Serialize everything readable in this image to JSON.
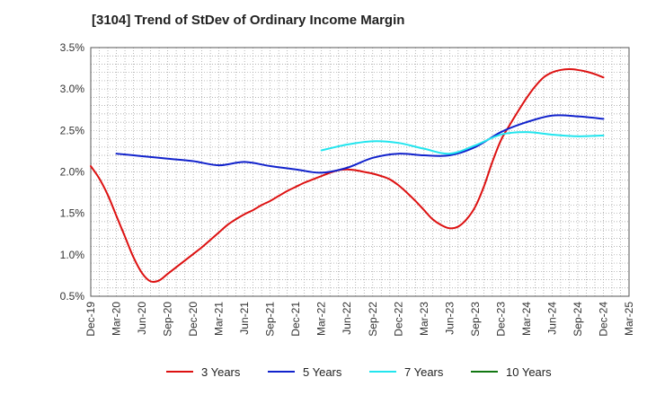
{
  "chart_data": {
    "type": "line",
    "title": "[3104]  Trend of StDev of Ordinary Income Margin",
    "xlabel": "",
    "ylabel": "",
    "x_tick_labels": [
      "Dec-19",
      "Mar-20",
      "Jun-20",
      "Sep-20",
      "Dec-20",
      "Mar-21",
      "Jun-21",
      "Sep-21",
      "Dec-21",
      "Mar-22",
      "Jun-22",
      "Sep-22",
      "Dec-22",
      "Mar-23",
      "Jun-23",
      "Sep-23",
      "Dec-23",
      "Mar-24",
      "Jun-24",
      "Sep-24",
      "Dec-24",
      "Mar-25"
    ],
    "y_tick_labels": [
      "0.5%",
      "1.0%",
      "1.5%",
      "2.0%",
      "2.5%",
      "3.0%",
      "3.5%"
    ],
    "ylim": [
      0.5,
      3.5
    ],
    "y_ticks": [
      0.5,
      1.0,
      1.5,
      2.0,
      2.5,
      3.0,
      3.5
    ],
    "grid": true,
    "legend_position": "bottom",
    "series": [
      {
        "name": "3 Years",
        "color": "#dd1111",
        "x": [
          "Dec-19",
          "Jan-20",
          "Feb-20",
          "Mar-20",
          "Apr-20",
          "May-20",
          "Jun-20",
          "Jul-20",
          "Aug-20",
          "Sep-20",
          "Oct-20",
          "Nov-20",
          "Dec-20",
          "Jan-21",
          "Feb-21",
          "Mar-21",
          "Apr-21",
          "May-21",
          "Jun-21",
          "Jul-21",
          "Aug-21",
          "Sep-21",
          "Oct-21",
          "Nov-21",
          "Dec-21",
          "Jan-22",
          "Feb-22",
          "Mar-22",
          "Apr-22",
          "May-22",
          "Jun-22",
          "Jul-22",
          "Aug-22",
          "Sep-22",
          "Oct-22",
          "Nov-22",
          "Dec-22",
          "Jan-23",
          "Feb-23",
          "Mar-23",
          "Apr-23",
          "May-23",
          "Jun-23",
          "Jul-23",
          "Aug-23",
          "Sep-23",
          "Oct-23",
          "Nov-23",
          "Dec-23",
          "Jan-24",
          "Feb-24",
          "Mar-24",
          "Apr-24",
          "May-24",
          "Jun-24",
          "Jul-24",
          "Aug-24",
          "Sep-24",
          "Oct-24",
          "Nov-24",
          "Dec-24"
        ],
        "values": [
          2.07,
          1.92,
          1.72,
          1.47,
          1.22,
          0.97,
          0.78,
          0.68,
          0.69,
          0.77,
          0.85,
          0.93,
          1.01,
          1.09,
          1.18,
          1.27,
          1.36,
          1.43,
          1.49,
          1.54,
          1.6,
          1.65,
          1.71,
          1.77,
          1.82,
          1.87,
          1.91,
          1.95,
          1.99,
          2.02,
          2.03,
          2.02,
          2.0,
          1.98,
          1.95,
          1.91,
          1.84,
          1.75,
          1.65,
          1.54,
          1.43,
          1.36,
          1.32,
          1.34,
          1.43,
          1.58,
          1.82,
          2.12,
          2.38,
          2.56,
          2.73,
          2.89,
          3.03,
          3.14,
          3.2,
          3.23,
          3.24,
          3.23,
          3.21,
          3.18,
          3.14
        ]
      },
      {
        "name": "5 Years",
        "color": "#1122cc",
        "x": [
          "Dec-19",
          "Mar-20",
          "Jun-20",
          "Sep-20",
          "Dec-20",
          "Mar-21",
          "Jun-21",
          "Sep-21",
          "Dec-21",
          "Mar-22",
          "Jun-22",
          "Sep-22",
          "Dec-22",
          "Mar-23",
          "Jun-23",
          "Sep-23",
          "Dec-23",
          "Mar-24",
          "Jun-24",
          "Sep-24",
          "Dec-24"
        ],
        "values": [
          null,
          2.22,
          2.19,
          2.16,
          2.13,
          2.08,
          2.12,
          2.07,
          2.03,
          1.99,
          2.05,
          2.17,
          2.22,
          2.2,
          2.2,
          2.3,
          2.48,
          2.6,
          2.68,
          2.67,
          2.64
        ]
      },
      {
        "name": "7 Years",
        "color": "#22e5ee",
        "x": [
          "Mar-22",
          "Jun-22",
          "Sep-22",
          "Dec-22",
          "Mar-23",
          "Jun-23",
          "Sep-23",
          "Dec-23",
          "Mar-24",
          "Jun-24",
          "Sep-24",
          "Dec-24"
        ],
        "values": [
          2.26,
          2.33,
          2.37,
          2.35,
          2.28,
          2.22,
          2.32,
          2.45,
          2.48,
          2.45,
          2.43,
          2.44
        ]
      },
      {
        "name": "10 Years",
        "color": "#117711",
        "x": [],
        "values": []
      }
    ]
  }
}
